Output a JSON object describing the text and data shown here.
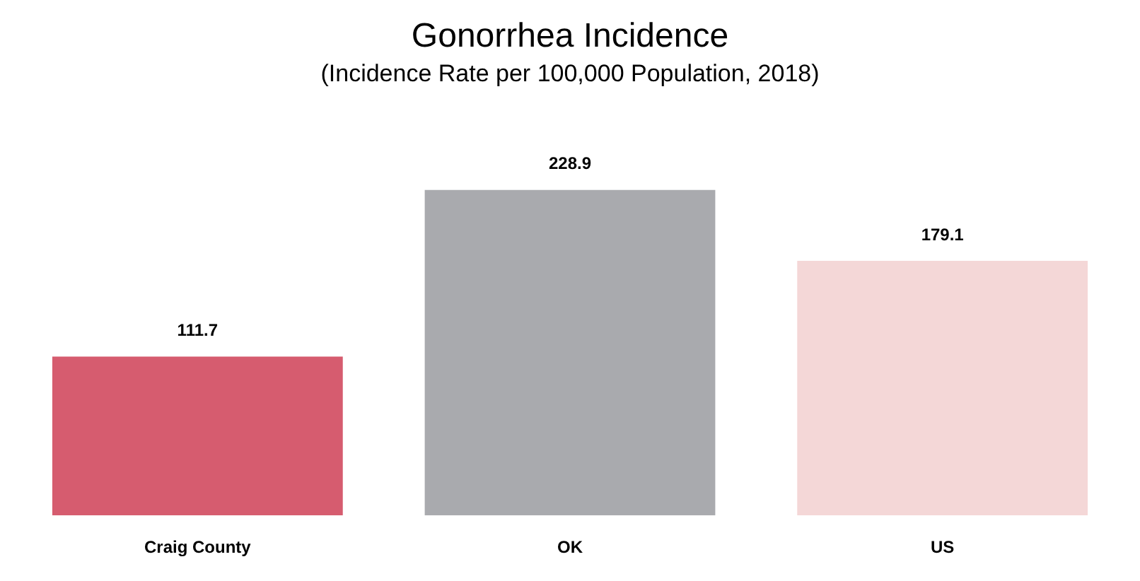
{
  "chart_data": {
    "type": "bar",
    "title": "Gonorrhea Incidence",
    "subtitle": "(Incidence Rate per 100,000 Population, 2018)",
    "categories": [
      "Craig County",
      "OK",
      "US"
    ],
    "values": [
      111.7,
      228.9,
      179.1
    ],
    "colors": [
      "#d65c6f",
      "#a9aaae",
      "#f4d7d7"
    ],
    "data_labels": true
  }
}
